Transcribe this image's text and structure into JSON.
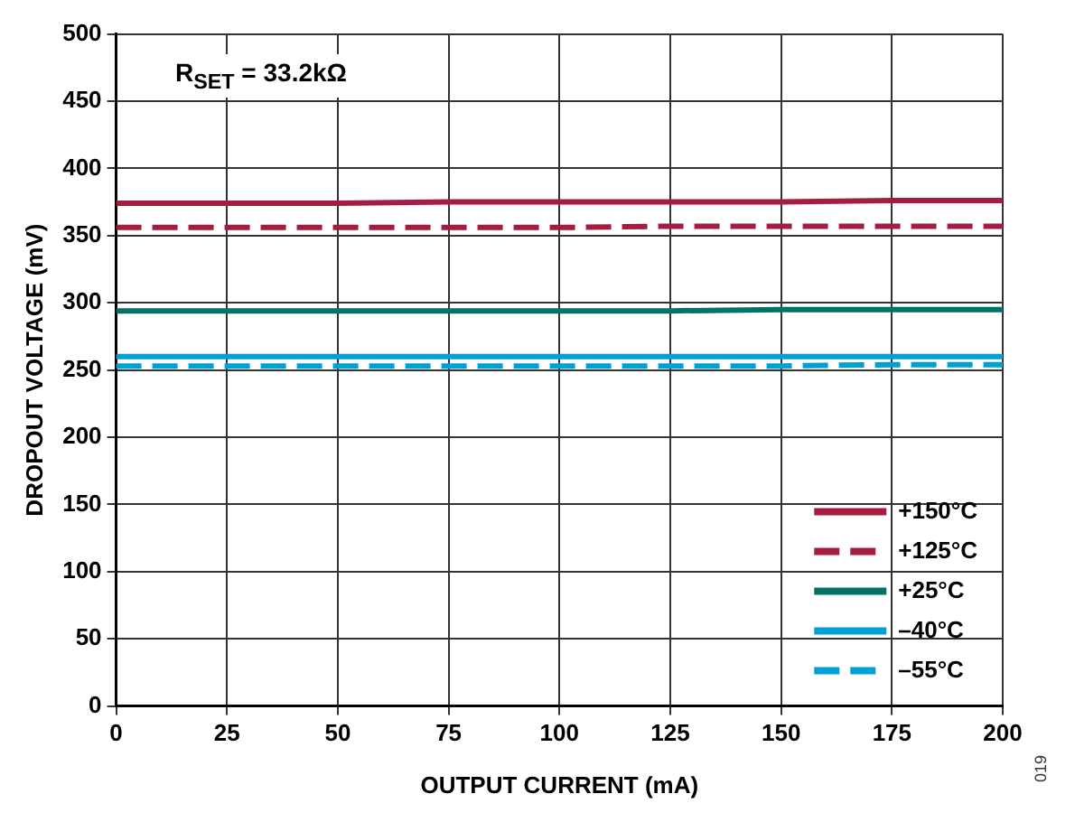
{
  "chart_data": {
    "type": "line",
    "xlabel": "OUTPUT CURRENT (mA)",
    "ylabel": "DROPOUT VOLTAGE (mV)",
    "x": [
      0,
      25,
      50,
      75,
      100,
      125,
      150,
      175,
      200
    ],
    "xlim": [
      0,
      200
    ],
    "xticks": [
      0,
      25,
      50,
      75,
      100,
      125,
      150,
      175,
      200
    ],
    "ylim": [
      0,
      500
    ],
    "yticks": [
      0,
      50,
      100,
      150,
      200,
      250,
      300,
      350,
      400,
      450,
      500
    ],
    "grid": true,
    "legend": "bottom right",
    "marker": "none",
    "annotations": [
      "R$_{SET}$ = 33.2kΩ",
      "019"
    ],
    "series": [
      {
        "name": "+150°C",
        "color": "#a51c40",
        "line_style": "solid",
        "values": [
          374,
          374,
          374,
          375,
          375,
          375,
          375,
          376,
          376
        ]
      },
      {
        "name": "+125°C",
        "color": "#a51c40",
        "line_style": "dashed",
        "values": [
          356,
          356,
          356,
          356,
          356,
          357,
          357,
          357,
          357
        ]
      },
      {
        "name": "+25°C",
        "color": "#007366",
        "line_style": "solid",
        "values": [
          294,
          294,
          294,
          294,
          294,
          294,
          295,
          295,
          295
        ]
      },
      {
        "name": "–40°C",
        "color": "#00a0d6",
        "line_style": "solid",
        "values": [
          260,
          260,
          260,
          260,
          260,
          260,
          260,
          260,
          260
        ]
      },
      {
        "name": "–55°C",
        "color": "#00a0d6",
        "line_style": "dashed",
        "values": [
          253,
          253,
          253,
          253,
          253,
          253,
          253,
          254,
          254
        ]
      }
    ]
  }
}
